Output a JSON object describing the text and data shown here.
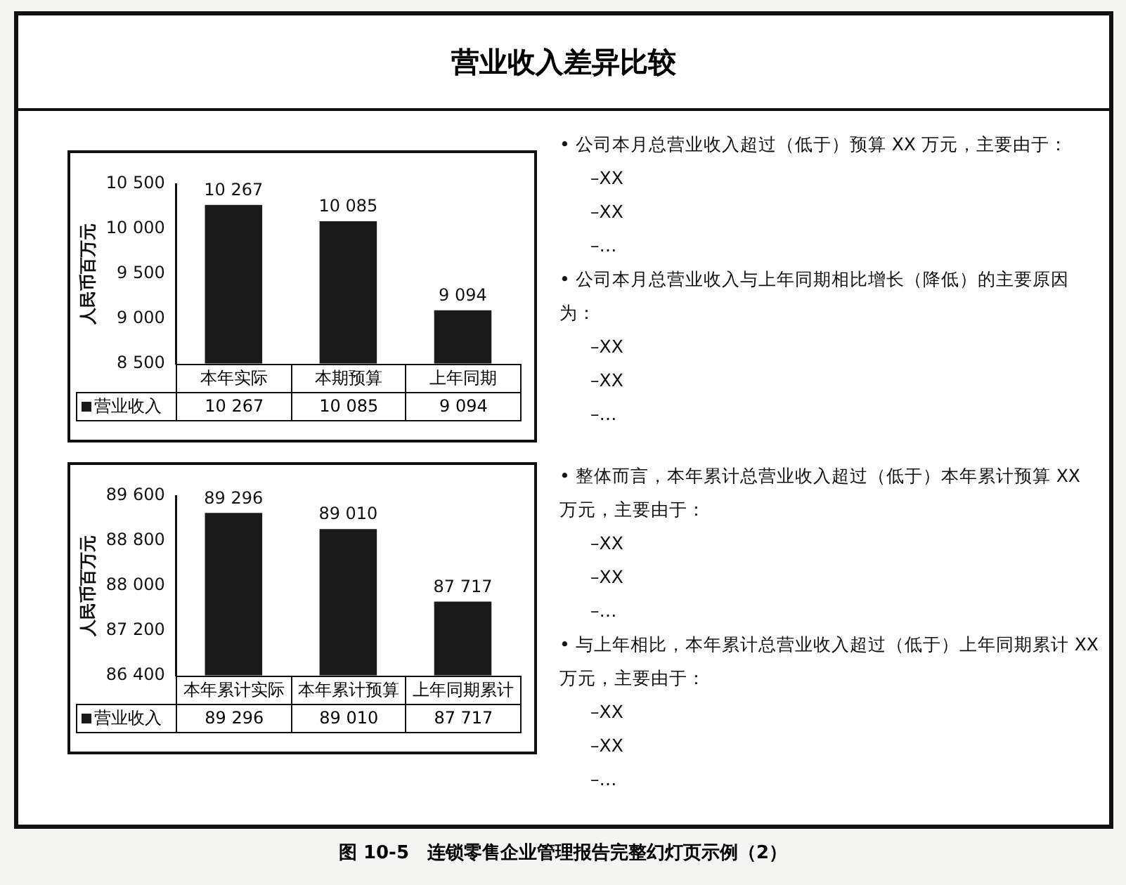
{
  "chart_data": [
    {
      "type": "bar",
      "title": "营业收入差异比较",
      "ylabel": "人民币百万元",
      "categories": [
        "本年实际",
        "本期预算",
        "上年同期"
      ],
      "series": [
        {
          "name": "营业收入",
          "color": "#1a1a1a",
          "values": [
            10267,
            10085,
            9094
          ],
          "value_labels": [
            "10 267",
            "10 085",
            "9 094"
          ]
        }
      ],
      "ylim": [
        8500,
        10500
      ],
      "yticks": [
        {
          "value": 8500,
          "label": "8 500"
        },
        {
          "value": 9000,
          "label": "9 000"
        },
        {
          "value": 9500,
          "label": "9 500"
        },
        {
          "value": 10000,
          "label": "10 000"
        },
        {
          "value": 10500,
          "label": "10 500"
        }
      ],
      "legend": "bottom",
      "annotations": [
        "• 公司本月总营业收入超过（低于）预算 XX 万元，主要由于：",
        "–XX",
        "–XX",
        "–…",
        "• 公司本月总营业收入与上年同期相比增长（降低）的主要原因为：",
        "–XX",
        "–XX",
        "–…"
      ]
    },
    {
      "type": "bar",
      "ylabel": "人民币百万元",
      "categories": [
        "本年累计实际",
        "本年累计预算",
        "上年同期累计"
      ],
      "series": [
        {
          "name": "营业收入",
          "color": "#1a1a1a",
          "values": [
            89296,
            89010,
            87717
          ],
          "value_labels": [
            "89 296",
            "89 010",
            "87 717"
          ]
        }
      ],
      "ylim": [
        86400,
        89600
      ],
      "yticks": [
        {
          "value": 86400,
          "label": "86 400"
        },
        {
          "value": 87200,
          "label": "87 200"
        },
        {
          "value": 88000,
          "label": "88 000"
        },
        {
          "value": 88800,
          "label": "88 800"
        },
        {
          "value": 89600,
          "label": "89 600"
        }
      ],
      "legend": "bottom",
      "annotations": [
        "• 整体而言，本年累计总营业收入超过（低于）本年累计预算 XX 万元，主要由于：",
        "–XX",
        "–XX",
        "–…",
        "• 与上年相比，本年累计总营业收入超过（低于）上年同期累计 XX 万元，主要由于：",
        "–XX",
        "–XX",
        "–…",
        "图 10-5　连锁零售企业管理报告完整幻灯页示例（2）"
      ]
    }
  ]
}
